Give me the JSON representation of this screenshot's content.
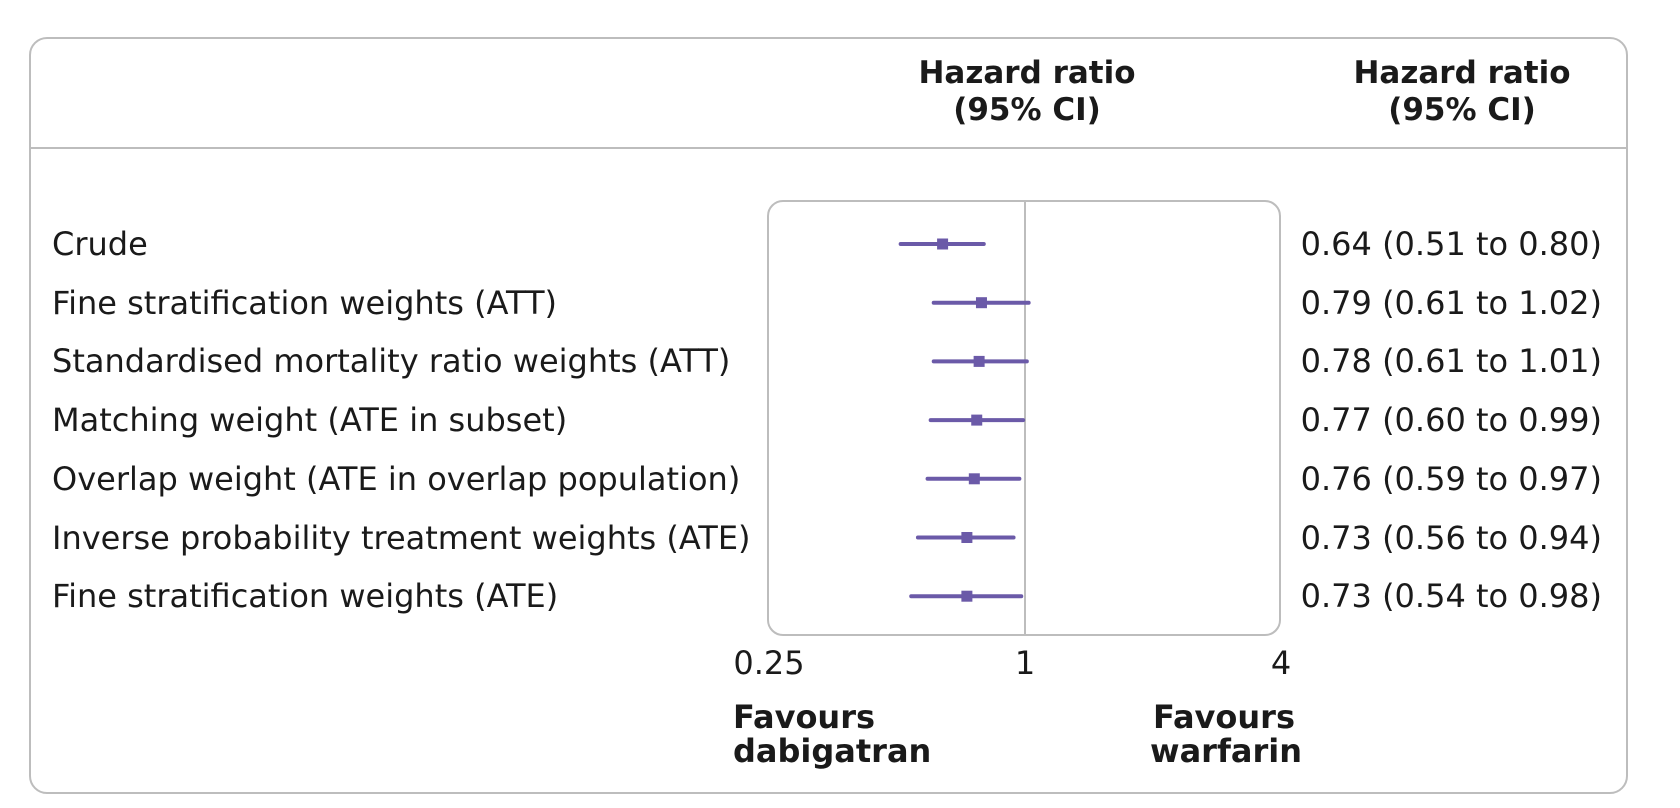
{
  "header": {
    "col_plot": [
      "Hazard ratio",
      "(95% CI)"
    ],
    "col_values": [
      "Hazard ratio",
      "(95% CI)"
    ]
  },
  "chart_data": {
    "type": "forest",
    "scale": "log",
    "xlim": [
      0.25,
      4
    ],
    "reference_line": 1,
    "x_ticks": [
      "0.25",
      "1",
      "4"
    ],
    "left_caption": [
      "Favours",
      "dabigatran"
    ],
    "right_caption": [
      "Favours",
      "warfarin"
    ],
    "marker_color": "#6b5aa8",
    "rows": [
      {
        "label": "Crude",
        "hr": 0.64,
        "lo": 0.51,
        "hi": 0.8,
        "text": "0.64 (0.51 to 0.80)"
      },
      {
        "label": "Fine stratification weights (ATT)",
        "hr": 0.79,
        "lo": 0.61,
        "hi": 1.02,
        "text": "0.79 (0.61 to 1.02)"
      },
      {
        "label": "Standardised mortality ratio weights (ATT)",
        "hr": 0.78,
        "lo": 0.61,
        "hi": 1.01,
        "text": "0.78 (0.61 to 1.01)"
      },
      {
        "label": "Matching weight (ATE in subset)",
        "hr": 0.77,
        "lo": 0.6,
        "hi": 0.99,
        "text": "0.77 (0.60 to 0.99)"
      },
      {
        "label": "Overlap weight (ATE in overlap population)",
        "hr": 0.76,
        "lo": 0.59,
        "hi": 0.97,
        "text": "0.76 (0.59 to 0.97)"
      },
      {
        "label": "Inverse probability treatment weights (ATE)",
        "hr": 0.73,
        "lo": 0.56,
        "hi": 0.94,
        "text": "0.73 (0.56 to 0.94)"
      },
      {
        "label": "Fine stratification weights (ATE)",
        "hr": 0.73,
        "lo": 0.54,
        "hi": 0.98,
        "text": "0.73 (0.54 to 0.98)"
      }
    ]
  }
}
